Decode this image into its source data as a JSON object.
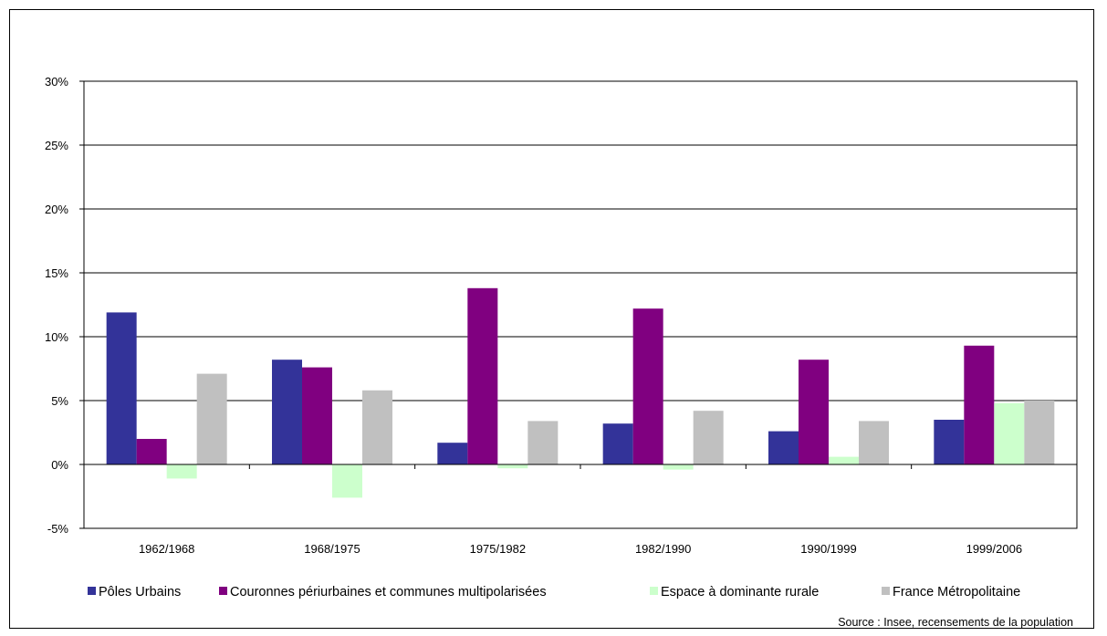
{
  "chart_data": {
    "type": "bar",
    "categories": [
      "1962/1968",
      "1968/1975",
      "1975/1982",
      "1982/1990",
      "1990/1999",
      "1999/2006"
    ],
    "series": [
      {
        "name": "Pôles Urbains",
        "color": "#333399",
        "values": [
          11.9,
          8.2,
          1.7,
          3.2,
          2.6,
          3.5
        ]
      },
      {
        "name": "Couronnes périurbaines et communes multipolarisées",
        "color": "#800080",
        "values": [
          2.0,
          7.6,
          13.8,
          12.2,
          8.2,
          9.3
        ]
      },
      {
        "name": "Espace à dominante rurale",
        "color": "#ccffcc",
        "values": [
          -1.1,
          -2.6,
          -0.3,
          -0.4,
          0.6,
          4.8
        ]
      },
      {
        "name": "France Métropolitaine",
        "color": "#c0c0c0",
        "values": [
          7.1,
          5.8,
          3.4,
          4.2,
          3.4,
          5.0
        ]
      }
    ],
    "yticks": [
      "30%",
      "25%",
      "20%",
      "15%",
      "10%",
      "5%",
      "0%",
      "-5%"
    ],
    "ytick_values": [
      30,
      25,
      20,
      15,
      10,
      5,
      0,
      -5
    ],
    "ylim": [
      -5,
      30
    ],
    "grid": true,
    "legend_position": "bottom",
    "source": "Source : Insee, recensements de la population"
  }
}
